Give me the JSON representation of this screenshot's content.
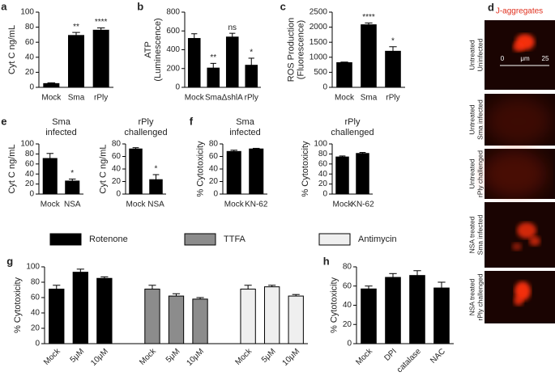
{
  "chart_data": [
    {
      "type": "bar",
      "panel": "a",
      "ylabel": [
        "Cyt C ng/mL"
      ],
      "categories": [
        "Mock",
        "Sma",
        "rPly"
      ],
      "values": [
        5,
        69,
        76
      ],
      "errors": [
        1,
        4,
        3
      ],
      "annotations": [
        null,
        "**",
        "****"
      ],
      "color": "#000000",
      "ylim": [
        0,
        100
      ],
      "yticks": [
        0,
        20,
        40,
        60,
        80,
        100
      ]
    },
    {
      "type": "bar",
      "panel": "b",
      "ylabel": [
        "ATP",
        "(Luminescence)"
      ],
      "categories": [
        "Mock",
        "Sma",
        "ΔshlA",
        "rPly"
      ],
      "values": [
        520,
        205,
        535,
        235
      ],
      "errors": [
        50,
        50,
        40,
        75
      ],
      "annotations": [
        null,
        "**",
        "ns",
        "*"
      ],
      "color": "#000000",
      "ylim": [
        0,
        800
      ],
      "yticks": [
        0,
        200,
        400,
        600,
        800
      ]
    },
    {
      "type": "bar",
      "panel": "c",
      "ylabel": [
        "ROS Production",
        "(Fluorescence)"
      ],
      "categories": [
        "Mock",
        "Sma",
        "rPly"
      ],
      "values": [
        820,
        2080,
        1200
      ],
      "errors": [
        20,
        60,
        150
      ],
      "annotations": [
        null,
        "****",
        "*"
      ],
      "color": "#000000",
      "ylim": [
        0,
        2500
      ],
      "yticks": [
        0,
        500,
        1000,
        1500,
        2000,
        2500
      ]
    },
    {
      "type": "bar",
      "panel": "e",
      "title": [
        "Sma",
        "infected"
      ],
      "ylabel": [
        "Cyt C ng/mL"
      ],
      "categories": [
        "Mock",
        "NSA"
      ],
      "values": [
        71,
        26
      ],
      "errors": [
        10,
        4
      ],
      "annotations": [
        null,
        "*"
      ],
      "color": "#000000",
      "ylim": [
        0,
        100
      ],
      "yticks": [
        0,
        20,
        40,
        60,
        80,
        100
      ]
    },
    {
      "type": "bar",
      "title": [
        "rPly",
        "challenged"
      ],
      "ylabel": [
        "Cyt C ng/mL"
      ],
      "categories": [
        "Mock",
        "NSA"
      ],
      "values": [
        72,
        23
      ],
      "errors": [
        2,
        8
      ],
      "annotations": [
        null,
        "*"
      ],
      "color": "#000000",
      "ylim": [
        0,
        80
      ],
      "yticks": [
        0,
        20,
        40,
        60,
        80
      ]
    },
    {
      "type": "bar",
      "panel": "f",
      "title": [
        "Sma",
        "infected"
      ],
      "ylabel": [
        "% Cytotoxicity"
      ],
      "categories": [
        "Mock",
        "KN-62"
      ],
      "values": [
        68,
        72
      ],
      "errors": [
        2,
        1
      ],
      "color": "#000000",
      "ylim": [
        0,
        80
      ],
      "yticks": [
        0,
        20,
        40,
        60,
        80
      ]
    },
    {
      "type": "bar",
      "title": [
        "rPly",
        "challenged"
      ],
      "ylabel": [
        "% Cytotoxicity"
      ],
      "categories": [
        "Mock",
        "KN-62"
      ],
      "values": [
        74,
        81
      ],
      "errors": [
        2,
        2
      ],
      "color": "#000000",
      "ylim": [
        0,
        100
      ],
      "yticks": [
        0,
        20,
        40,
        60,
        80,
        100
      ]
    },
    {
      "type": "bar",
      "panel": "g",
      "ylabel": [
        "% Cytotoxicity"
      ],
      "categories": [
        "Mock",
        "5μM",
        "10μM"
      ],
      "series": [
        {
          "name": "Rotenone",
          "color": "#000000",
          "values": [
            71,
            93,
            85
          ],
          "errors": [
            5,
            4,
            2
          ]
        },
        {
          "name": "TTFA",
          "color": "#8c8c8c",
          "values": [
            71,
            62,
            58
          ],
          "errors": [
            5,
            3,
            2
          ]
        },
        {
          "name": "Antimycin",
          "color": "#efefef",
          "values": [
            71,
            74,
            62
          ],
          "errors": [
            5,
            2,
            2
          ]
        }
      ],
      "ylim": [
        0,
        100
      ],
      "yticks": [
        0,
        20,
        40,
        60,
        80,
        100
      ],
      "xtick_rotation": -45
    },
    {
      "type": "bar",
      "panel": "h",
      "ylabel": [
        "% Cytotoxicity"
      ],
      "categories": [
        "Mock",
        "DPI",
        "catalase",
        "NAC"
      ],
      "values": [
        57,
        69,
        71,
        58
      ],
      "errors": [
        3,
        4,
        5,
        6
      ],
      "color": "#000000",
      "ylim": [
        0,
        80
      ],
      "yticks": [
        0,
        20,
        40,
        60,
        80
      ],
      "xtick_rotation": -45
    }
  ],
  "image_panel": {
    "panel": "d",
    "title": "J-aggregates",
    "rows": [
      [
        "Untreated",
        "Uninfected"
      ],
      [
        "Untreated",
        "Sma infected"
      ],
      [
        "Untreated",
        "rPly challenged"
      ],
      [
        "NSA treated",
        "Sma infected"
      ],
      [
        "NSA treated",
        "rPly challenged"
      ]
    ],
    "scale": {
      "start": 0,
      "unit": "μm",
      "end": 25
    }
  }
}
